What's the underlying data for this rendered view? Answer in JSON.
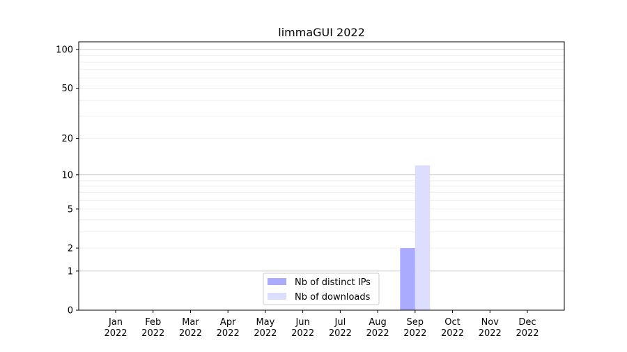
{
  "chart_data": {
    "type": "bar",
    "title": "limmaGUI 2022",
    "xlabel": "",
    "ylabel": "",
    "yscale": "log(1+y)",
    "ylim": [
      0,
      116
    ],
    "yticks": [
      0,
      1,
      2,
      5,
      10,
      20,
      50,
      100
    ],
    "categories": [
      "Jan\n2022",
      "Feb\n2022",
      "Mar\n2022",
      "Apr\n2022",
      "May\n2022",
      "Jun\n2022",
      "Jul\n2022",
      "Aug\n2022",
      "Sep\n2022",
      "Oct\n2022",
      "Nov\n2022",
      "Dec\n2022"
    ],
    "grid": true,
    "legend_position": "lower-center",
    "series": [
      {
        "name": "Nb of distinct IPs",
        "color": "#aaaaff",
        "values": [
          0,
          0,
          0,
          0,
          0,
          0,
          0,
          0,
          2,
          0,
          0,
          0
        ]
      },
      {
        "name": "Nb of downloads",
        "color": "#ddddff",
        "values": [
          0,
          0,
          0,
          0,
          0,
          0,
          0,
          0,
          12,
          0,
          0,
          0
        ]
      }
    ]
  }
}
